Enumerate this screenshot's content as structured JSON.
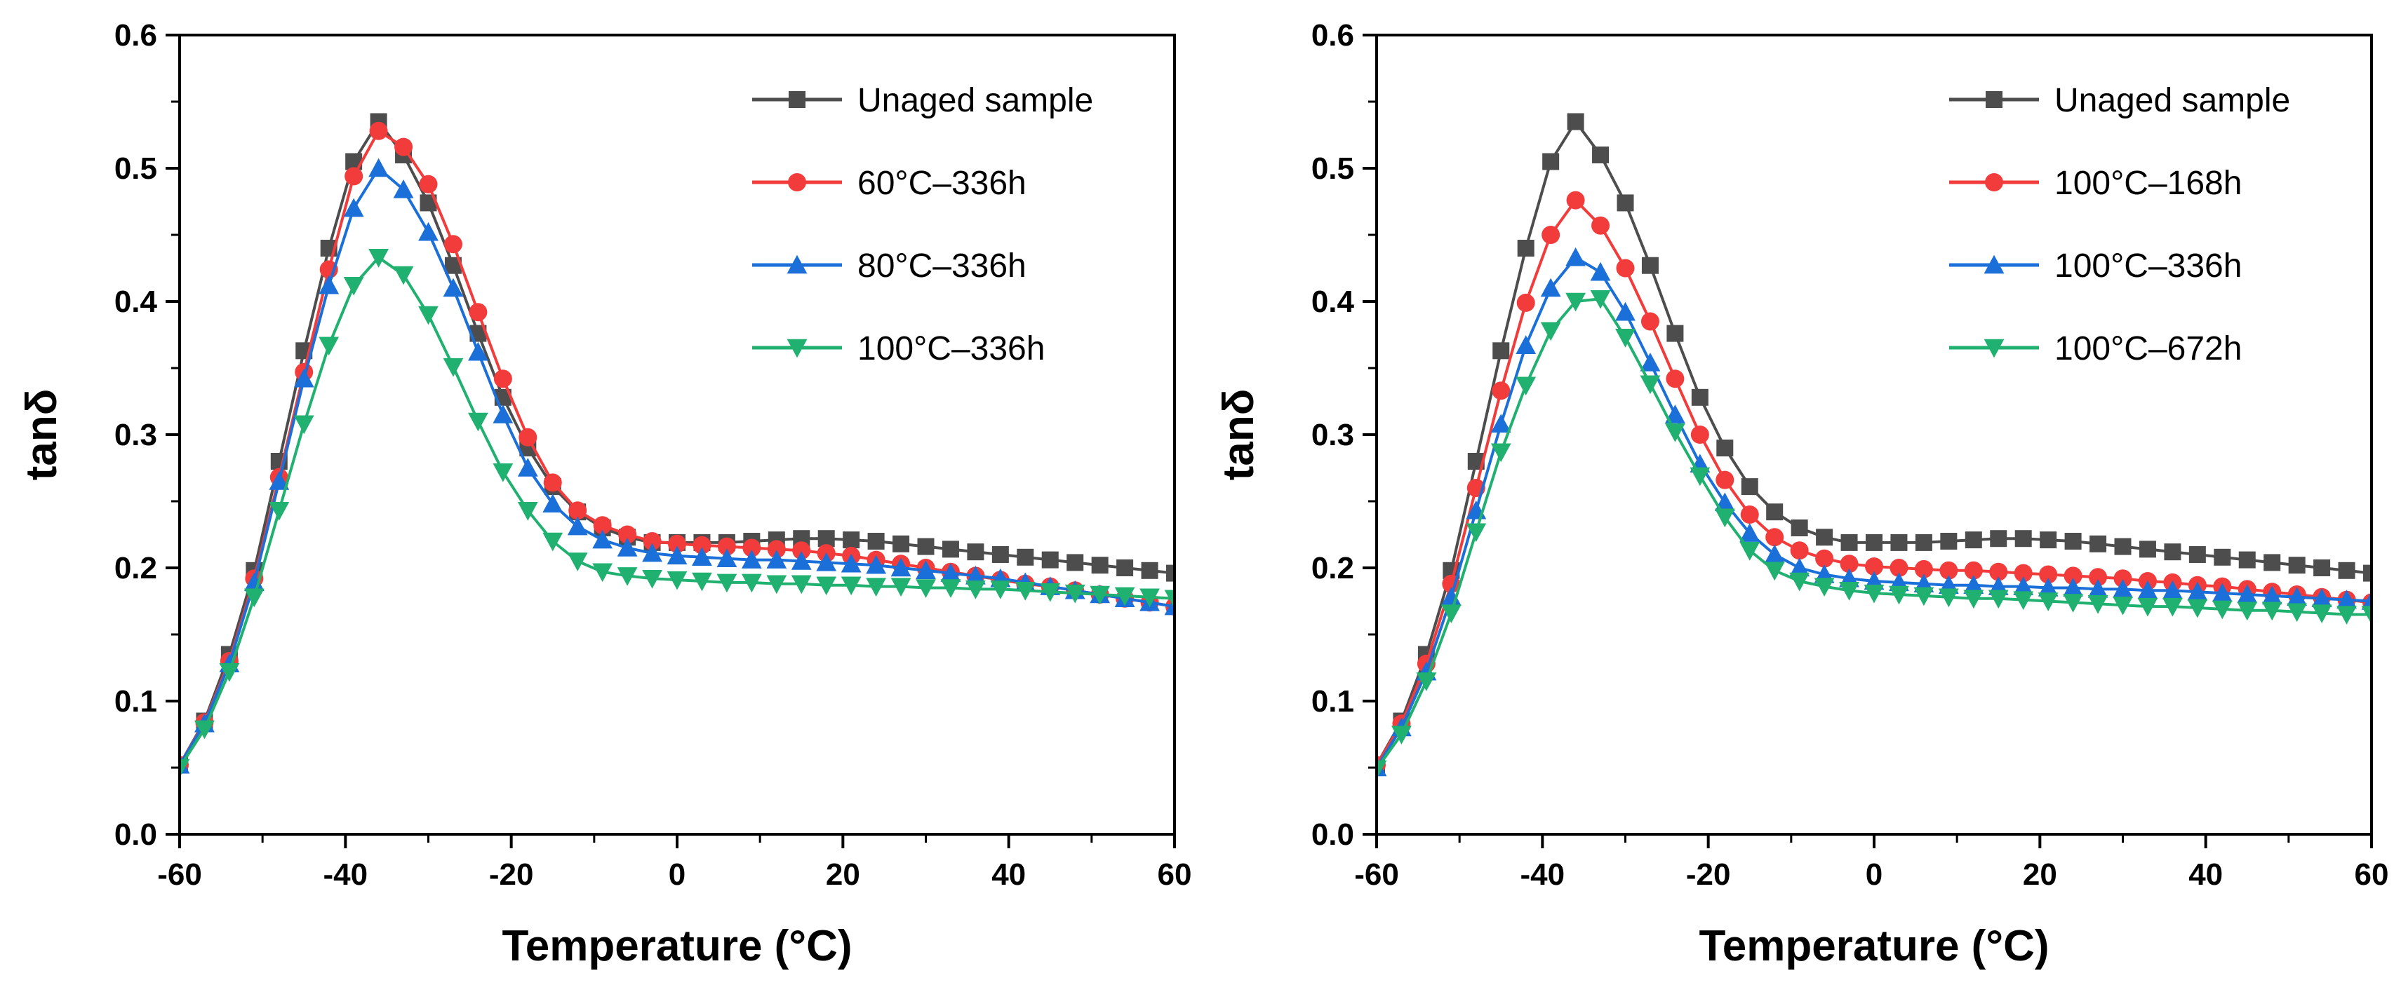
{
  "chart_data": [
    {
      "type": "line",
      "title": "",
      "xlabel": "Temperature (°C)",
      "ylabel": "tanδ",
      "xlim": [
        -60,
        60
      ],
      "ylim": [
        0.0,
        0.6
      ],
      "xticks": [
        "-60",
        "-40",
        "-20",
        "0",
        "20",
        "40",
        "60"
      ],
      "yticks": [
        "0.0",
        "0.1",
        "0.2",
        "0.3",
        "0.4",
        "0.5",
        "0.6"
      ],
      "legend_position": "top-right",
      "series": [
        {
          "name": "Unaged sample",
          "color": "#4d4d4d",
          "marker": "square",
          "x": [
            -60,
            -57,
            -54,
            -51,
            -48,
            -45,
            -42,
            -39,
            -36,
            -33,
            -30,
            -27,
            -24,
            -21,
            -18,
            -15,
            -12,
            -9,
            -6,
            -3,
            0,
            3,
            6,
            9,
            12,
            15,
            18,
            21,
            24,
            27,
            30,
            33,
            36,
            39,
            42,
            45,
            48,
            51,
            54,
            57,
            60
          ],
          "y": [
            0.052,
            0.085,
            0.135,
            0.198,
            0.28,
            0.363,
            0.44,
            0.505,
            0.535,
            0.51,
            0.474,
            0.427,
            0.376,
            0.328,
            0.29,
            0.261,
            0.242,
            0.23,
            0.223,
            0.219,
            0.219,
            0.219,
            0.219,
            0.22,
            0.221,
            0.222,
            0.222,
            0.221,
            0.22,
            0.218,
            0.216,
            0.214,
            0.212,
            0.21,
            0.208,
            0.206,
            0.204,
            0.202,
            0.2,
            0.198,
            0.196
          ]
        },
        {
          "name": "60°C–336h",
          "color": "#f23b3b",
          "marker": "circle",
          "x": [
            -60,
            -57,
            -54,
            -51,
            -48,
            -45,
            -42,
            -39,
            -36,
            -33,
            -30,
            -27,
            -24,
            -21,
            -18,
            -15,
            -12,
            -9,
            -6,
            -3,
            0,
            3,
            6,
            9,
            12,
            15,
            18,
            21,
            24,
            27,
            30,
            33,
            36,
            39,
            42,
            45,
            48,
            51,
            54,
            57,
            60
          ],
          "y": [
            0.052,
            0.084,
            0.13,
            0.192,
            0.268,
            0.347,
            0.424,
            0.494,
            0.528,
            0.516,
            0.488,
            0.443,
            0.392,
            0.342,
            0.298,
            0.264,
            0.243,
            0.232,
            0.225,
            0.22,
            0.218,
            0.217,
            0.216,
            0.215,
            0.214,
            0.213,
            0.211,
            0.209,
            0.206,
            0.203,
            0.2,
            0.197,
            0.194,
            0.191,
            0.188,
            0.186,
            0.183,
            0.18,
            0.177,
            0.174,
            0.171
          ]
        },
        {
          "name": "80°C–336h",
          "color": "#1a6fd9",
          "marker": "triangle-up",
          "x": [
            -60,
            -57,
            -54,
            -51,
            -48,
            -45,
            -42,
            -39,
            -36,
            -33,
            -30,
            -27,
            -24,
            -21,
            -18,
            -15,
            -12,
            -9,
            -6,
            -3,
            0,
            3,
            6,
            9,
            12,
            15,
            18,
            21,
            24,
            27,
            30,
            33,
            36,
            39,
            42,
            45,
            48,
            51,
            54,
            57,
            60
          ],
          "y": [
            0.052,
            0.083,
            0.128,
            0.189,
            0.265,
            0.342,
            0.412,
            0.47,
            0.5,
            0.484,
            0.452,
            0.41,
            0.362,
            0.315,
            0.275,
            0.248,
            0.231,
            0.221,
            0.215,
            0.211,
            0.209,
            0.208,
            0.207,
            0.206,
            0.206,
            0.205,
            0.204,
            0.203,
            0.202,
            0.2,
            0.198,
            0.196,
            0.194,
            0.192,
            0.189,
            0.186,
            0.183,
            0.18,
            0.177,
            0.174,
            0.171
          ]
        },
        {
          "name": "100°C–336h",
          "color": "#20b070",
          "marker": "triangle-down",
          "x": [
            -60,
            -57,
            -54,
            -51,
            -48,
            -45,
            -42,
            -39,
            -36,
            -33,
            -30,
            -27,
            -24,
            -21,
            -18,
            -15,
            -12,
            -9,
            -6,
            -3,
            0,
            3,
            6,
            9,
            12,
            15,
            18,
            21,
            24,
            27,
            30,
            33,
            36,
            39,
            42,
            45,
            48,
            51,
            54,
            57,
            60
          ],
          "y": [
            0.05,
            0.079,
            0.122,
            0.178,
            0.243,
            0.308,
            0.367,
            0.412,
            0.433,
            0.42,
            0.39,
            0.351,
            0.31,
            0.272,
            0.243,
            0.22,
            0.205,
            0.197,
            0.194,
            0.192,
            0.191,
            0.19,
            0.189,
            0.189,
            0.188,
            0.188,
            0.187,
            0.187,
            0.186,
            0.186,
            0.185,
            0.185,
            0.184,
            0.184,
            0.183,
            0.182,
            0.181,
            0.18,
            0.179,
            0.178,
            0.177
          ]
        }
      ]
    },
    {
      "type": "line",
      "title": "",
      "xlabel": "Temperature (°C)",
      "ylabel": "tanδ",
      "xlim": [
        -60,
        60
      ],
      "ylim": [
        0.0,
        0.6
      ],
      "xticks": [
        "-60",
        "-40",
        "-20",
        "0",
        "20",
        "40",
        "60"
      ],
      "yticks": [
        "0.0",
        "0.1",
        "0.2",
        "0.3",
        "0.4",
        "0.5",
        "0.6"
      ],
      "legend_position": "top-right",
      "series": [
        {
          "name": "Unaged sample",
          "color": "#4d4d4d",
          "marker": "square",
          "x": [
            -60,
            -57,
            -54,
            -51,
            -48,
            -45,
            -42,
            -39,
            -36,
            -33,
            -30,
            -27,
            -24,
            -21,
            -18,
            -15,
            -12,
            -9,
            -6,
            -3,
            0,
            3,
            6,
            9,
            12,
            15,
            18,
            21,
            24,
            27,
            30,
            33,
            36,
            39,
            42,
            45,
            48,
            51,
            54,
            57,
            60
          ],
          "y": [
            0.052,
            0.085,
            0.135,
            0.198,
            0.28,
            0.363,
            0.44,
            0.505,
            0.535,
            0.51,
            0.474,
            0.427,
            0.376,
            0.328,
            0.29,
            0.261,
            0.242,
            0.23,
            0.223,
            0.219,
            0.219,
            0.219,
            0.219,
            0.22,
            0.221,
            0.222,
            0.222,
            0.221,
            0.22,
            0.218,
            0.216,
            0.214,
            0.212,
            0.21,
            0.208,
            0.206,
            0.204,
            0.202,
            0.2,
            0.198,
            0.196
          ]
        },
        {
          "name": "100°C–168h",
          "color": "#f23b3b",
          "marker": "circle",
          "x": [
            -60,
            -57,
            -54,
            -51,
            -48,
            -45,
            -42,
            -39,
            -36,
            -33,
            -30,
            -27,
            -24,
            -21,
            -18,
            -15,
            -12,
            -9,
            -6,
            -3,
            0,
            3,
            6,
            9,
            12,
            15,
            18,
            21,
            24,
            27,
            30,
            33,
            36,
            39,
            42,
            45,
            48,
            51,
            54,
            57,
            60
          ],
          "y": [
            0.052,
            0.083,
            0.128,
            0.188,
            0.26,
            0.333,
            0.399,
            0.45,
            0.476,
            0.457,
            0.425,
            0.385,
            0.342,
            0.3,
            0.266,
            0.24,
            0.223,
            0.213,
            0.207,
            0.203,
            0.201,
            0.2,
            0.199,
            0.198,
            0.198,
            0.197,
            0.196,
            0.195,
            0.194,
            0.193,
            0.192,
            0.19,
            0.189,
            0.187,
            0.186,
            0.184,
            0.182,
            0.18,
            0.178,
            0.176,
            0.174
          ]
        },
        {
          "name": "100°C–336h",
          "color": "#1a6fd9",
          "marker": "triangle-up",
          "x": [
            -60,
            -57,
            -54,
            -51,
            -48,
            -45,
            -42,
            -39,
            -36,
            -33,
            -30,
            -27,
            -24,
            -21,
            -18,
            -15,
            -12,
            -9,
            -6,
            -3,
            0,
            3,
            6,
            9,
            12,
            15,
            18,
            21,
            24,
            27,
            30,
            33,
            36,
            39,
            42,
            45,
            48,
            51,
            54,
            57,
            60
          ],
          "y": [
            0.05,
            0.08,
            0.122,
            0.178,
            0.243,
            0.308,
            0.367,
            0.41,
            0.433,
            0.422,
            0.392,
            0.354,
            0.315,
            0.278,
            0.249,
            0.226,
            0.21,
            0.2,
            0.195,
            0.192,
            0.19,
            0.189,
            0.188,
            0.187,
            0.187,
            0.186,
            0.186,
            0.185,
            0.185,
            0.184,
            0.184,
            0.183,
            0.183,
            0.182,
            0.181,
            0.18,
            0.179,
            0.178,
            0.177,
            0.176,
            0.175
          ]
        },
        {
          "name": "100°C–672h",
          "color": "#20b070",
          "marker": "triangle-down",
          "x": [
            -60,
            -57,
            -54,
            -51,
            -48,
            -45,
            -42,
            -39,
            -36,
            -33,
            -30,
            -27,
            -24,
            -21,
            -18,
            -15,
            -12,
            -9,
            -6,
            -3,
            0,
            3,
            6,
            9,
            12,
            15,
            18,
            21,
            24,
            27,
            30,
            33,
            36,
            39,
            42,
            45,
            48,
            51,
            54,
            57,
            60
          ],
          "y": [
            0.049,
            0.075,
            0.115,
            0.166,
            0.227,
            0.287,
            0.337,
            0.378,
            0.4,
            0.402,
            0.373,
            0.338,
            0.302,
            0.269,
            0.238,
            0.213,
            0.198,
            0.19,
            0.186,
            0.183,
            0.181,
            0.18,
            0.179,
            0.178,
            0.177,
            0.177,
            0.176,
            0.175,
            0.174,
            0.173,
            0.172,
            0.171,
            0.171,
            0.17,
            0.169,
            0.168,
            0.168,
            0.167,
            0.166,
            0.165,
            0.165
          ]
        }
      ]
    }
  ]
}
